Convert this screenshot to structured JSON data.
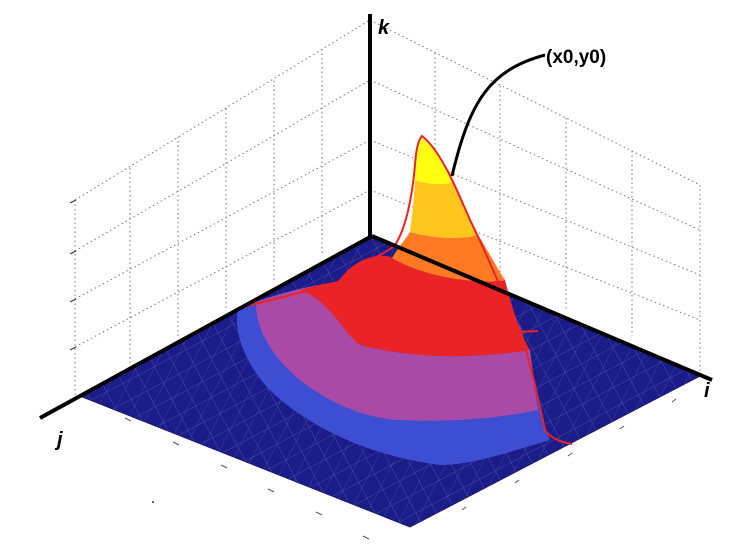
{
  "axes": {
    "i_label": "i",
    "j_label": "j",
    "k_label": "k"
  },
  "annotation": {
    "peak_label": "(x0,y0)"
  },
  "colors": {
    "floor": "#1b1b8a",
    "floor_grid": "#4d5ea8",
    "band_1": "#3e4ed2",
    "band_2": "#a84aa6",
    "band_3": "#ea2326",
    "band_4": "#ff7a22",
    "band_5": "#ffc61e",
    "band_6": "#ffff10",
    "outline": "#ee2222"
  }
}
